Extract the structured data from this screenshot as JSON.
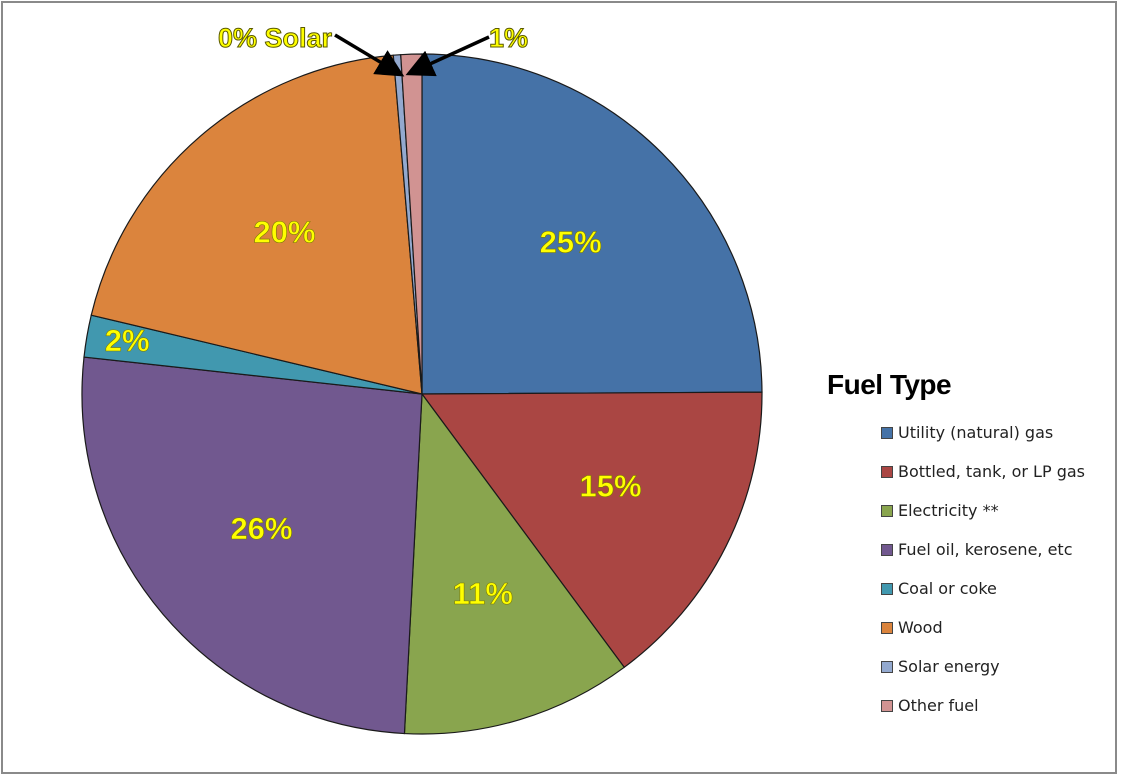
{
  "chart_data": {
    "type": "pie",
    "legend_title": "Fuel Type",
    "legend_position": "right",
    "slices": [
      {
        "label": "Utility (natural) gas",
        "value": 25,
        "display": "25%",
        "color": "#4572a7"
      },
      {
        "label": "Bottled, tank, or LP gas",
        "value": 15,
        "display": "15%",
        "color": "#aa4643"
      },
      {
        "label": "Electricity **",
        "value": 11,
        "display": "11%",
        "color": "#89a54e"
      },
      {
        "label": "Fuel oil, kerosene, etc",
        "value": 26,
        "display": "26%",
        "color": "#71588f"
      },
      {
        "label": "Coal or coke",
        "value": 2,
        "display": "2%",
        "color": "#4198af"
      },
      {
        "label": "Wood",
        "value": 20,
        "display": "20%",
        "color": "#db843d"
      },
      {
        "label": "Solar energy",
        "value": 0,
        "display": "0% Solar",
        "color": "#93a9cf"
      },
      {
        "label": "Other fuel",
        "value": 1,
        "display": "1%",
        "color": "#d19392"
      }
    ]
  }
}
